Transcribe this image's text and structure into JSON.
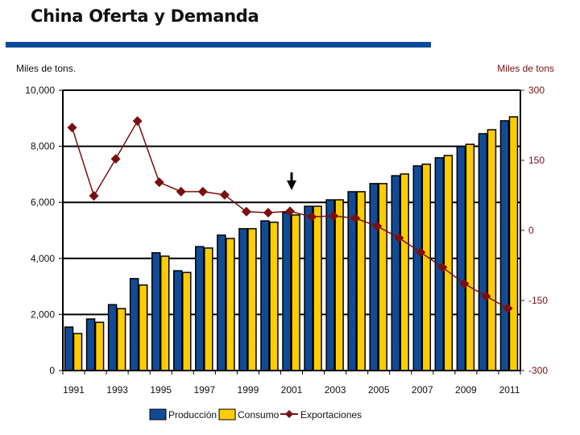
{
  "title": "China Oferta y Demanda",
  "colors": {
    "title_bar": "#0a4a9c",
    "produccion": "#1457a8",
    "consumo": "#ffcc00",
    "exportaciones": "#7a0f0f",
    "right_axis_text": "#7a1010"
  },
  "chart_data": {
    "type": "bar+line",
    "title": "China Oferta y Demanda",
    "ylabel": "Miles de tons.",
    "y2label": "Miles de tons",
    "ylim": [
      0,
      10000
    ],
    "y2lim": [
      -300,
      300
    ],
    "yticks": [
      "0",
      "2,000",
      "4,000",
      "6,000",
      "8,000",
      "10,000"
    ],
    "yticks_values": [
      0,
      2000,
      4000,
      6000,
      8000,
      10000
    ],
    "y2ticks": [
      "-300",
      "-150",
      "0",
      "150",
      "300"
    ],
    "y2ticks_values": [
      -300,
      -150,
      0,
      150,
      300
    ],
    "grid": "horizontal",
    "legend": "bottom",
    "categories": [
      1991,
      1992,
      1993,
      1994,
      1995,
      1996,
      1997,
      1998,
      1999,
      2000,
      2001,
      2002,
      2003,
      2004,
      2005,
      2006,
      2007,
      2008,
      2009,
      2010,
      2011
    ],
    "xtick_labels": [
      "1991",
      "1993",
      "1995",
      "1997",
      "1999",
      "2001",
      "2003",
      "2005",
      "2007",
      "2009",
      "2011"
    ],
    "annotation": {
      "type": "down-arrow",
      "category": 2001
    },
    "series": [
      {
        "name": "Producción",
        "type": "bar",
        "axis": "left",
        "values": [
          1550,
          1840,
          2350,
          3280,
          4200,
          3560,
          4420,
          4830,
          5060,
          5340,
          5630,
          5860,
          6090,
          6380,
          6670,
          6950,
          7300,
          7590,
          7990,
          8450,
          8910
        ]
      },
      {
        "name": "Consumo",
        "type": "bar",
        "axis": "left",
        "values": [
          1320,
          1720,
          2210,
          3050,
          4080,
          3500,
          4370,
          4710,
          5060,
          5290,
          5550,
          5860,
          6090,
          6380,
          6670,
          7010,
          7360,
          7670,
          8070,
          8590,
          9050
        ]
      },
      {
        "name": "Exportaciones",
        "type": "line",
        "axis": "right",
        "values": [
          220,
          74,
          153,
          234,
          103,
          83,
          83,
          76,
          40,
          38,
          41,
          29,
          31,
          26,
          9,
          -16,
          -47,
          -79,
          -114,
          -141,
          -167
        ]
      }
    ]
  }
}
